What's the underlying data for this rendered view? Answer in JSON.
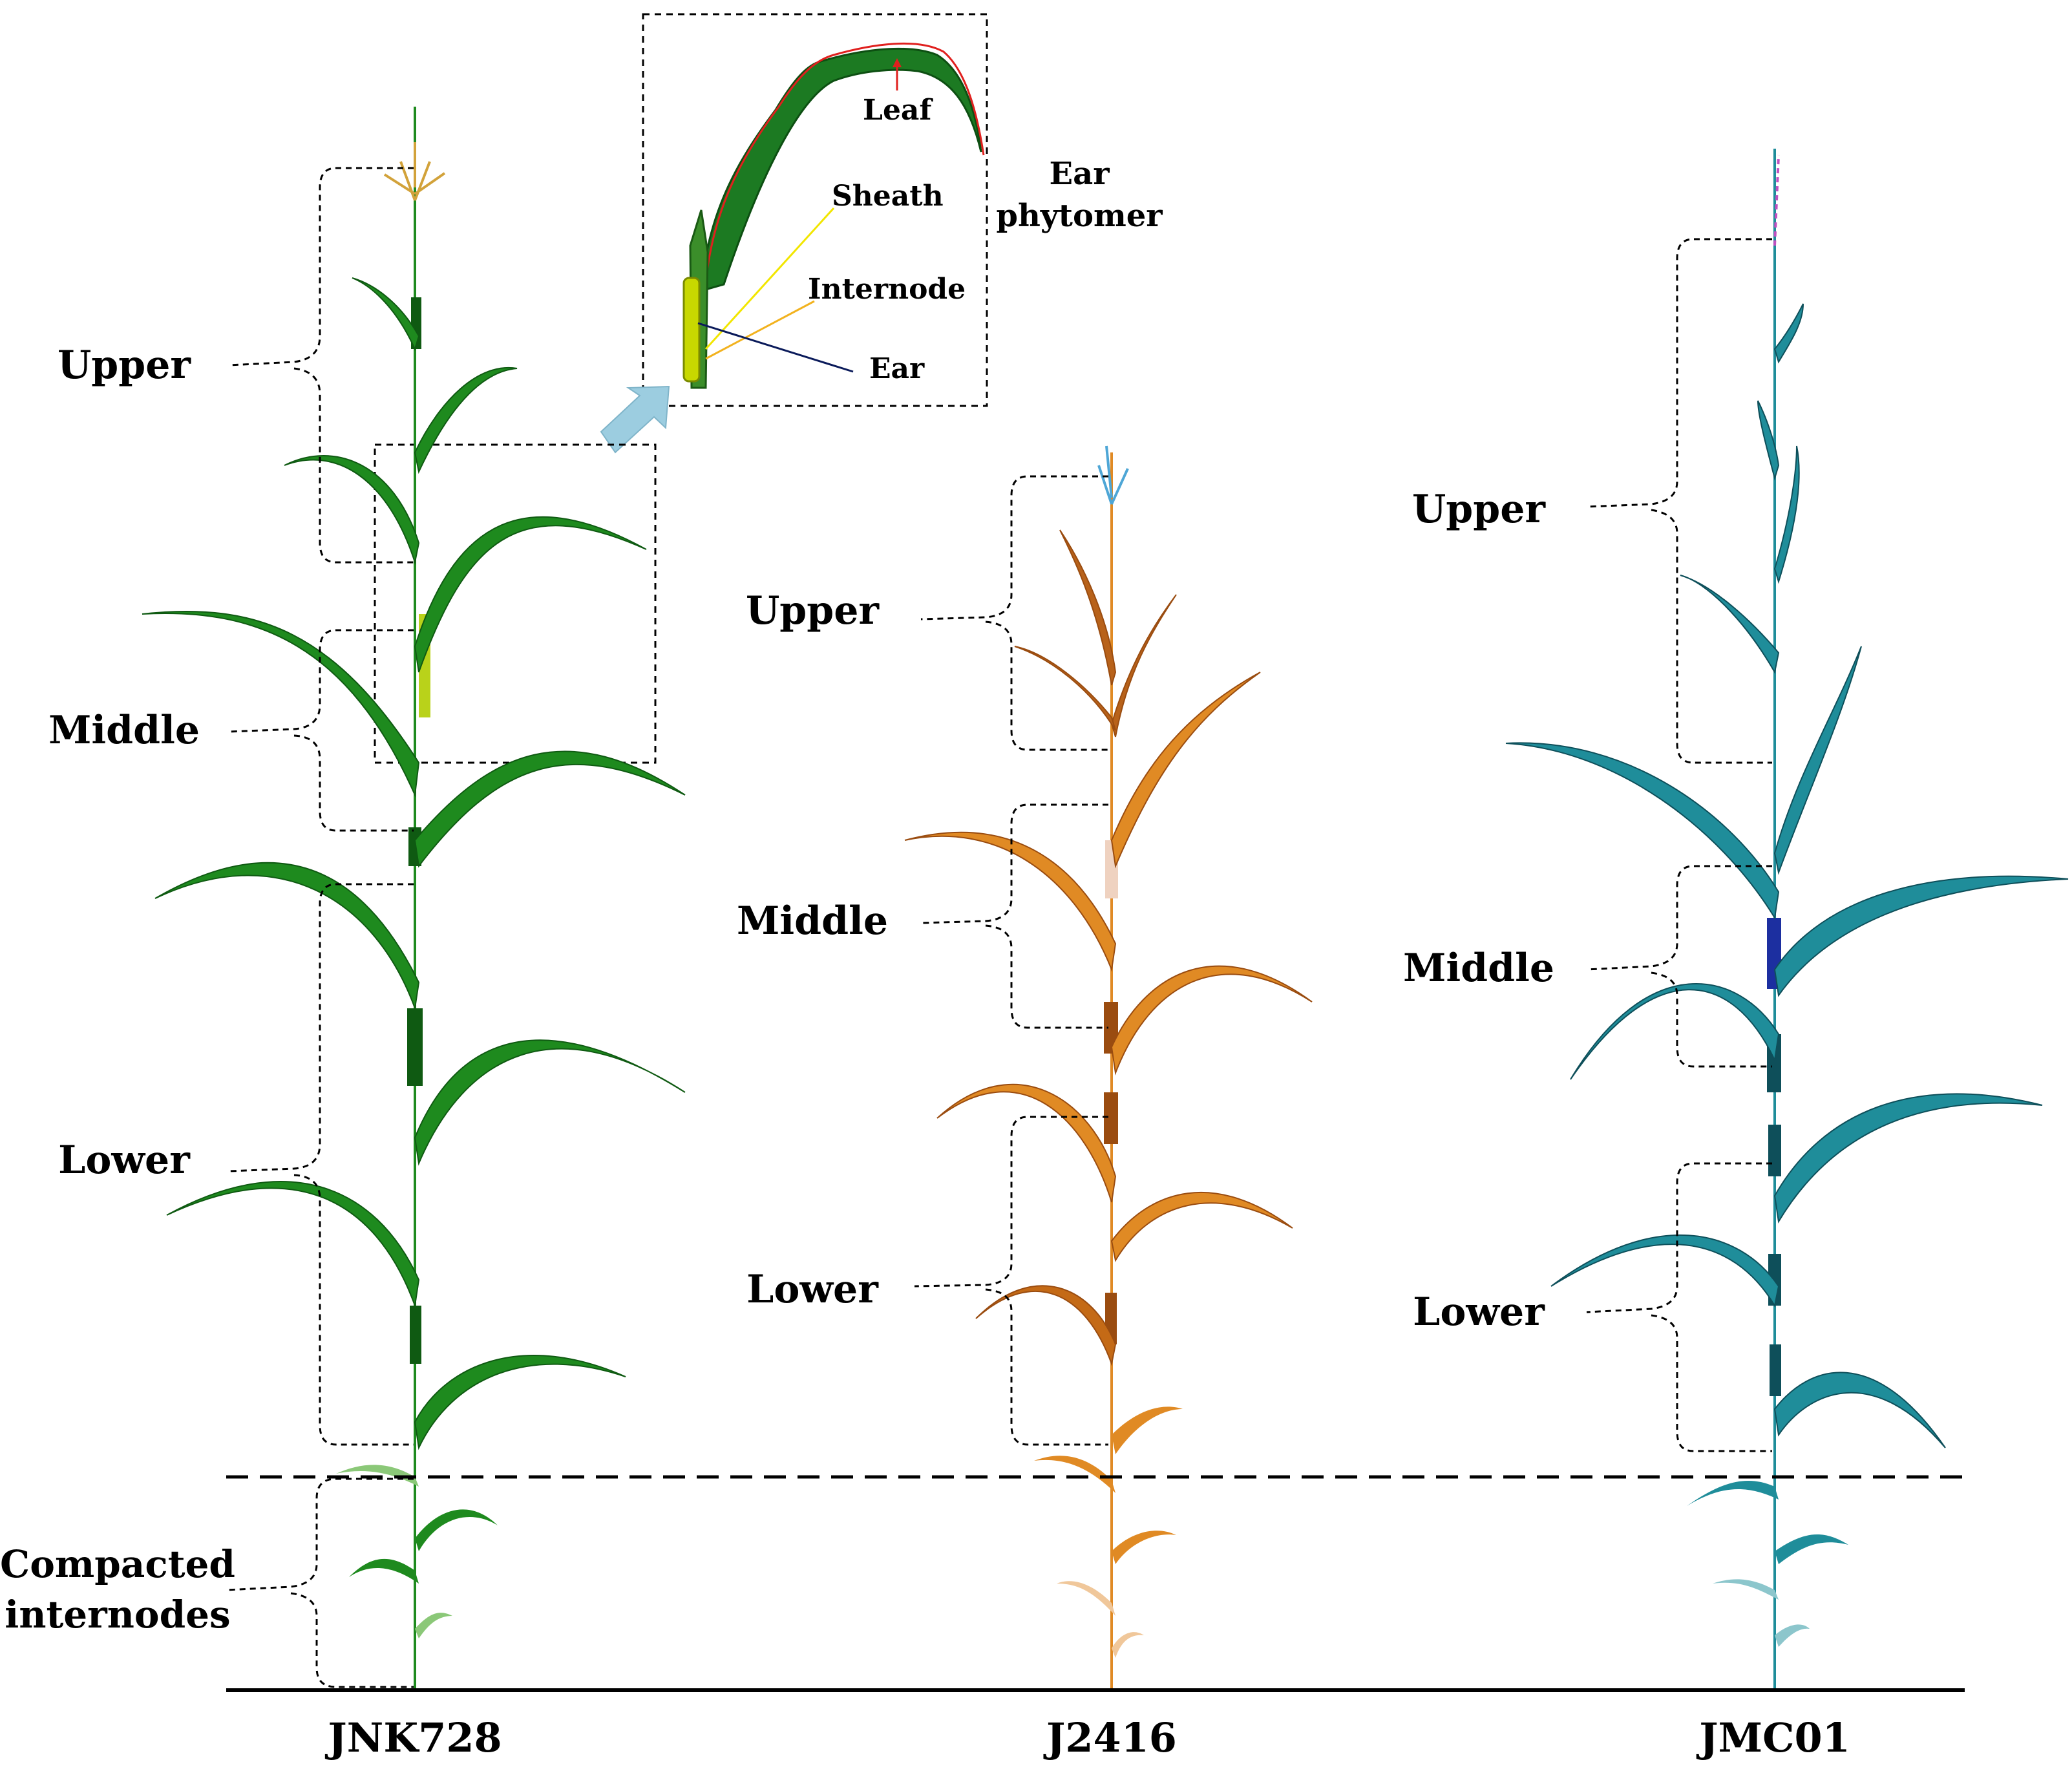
{
  "figure": {
    "inset_title": "Ear phytomer",
    "inset_title_line1": "Ear",
    "inset_title_line2": "phytomer",
    "inset_labels": {
      "leaf": "Leaf",
      "sheath": "Sheath",
      "internode": "Internode",
      "ear": "Ear"
    },
    "shared_region_label": {
      "line1": "Compacted",
      "line2": "internodes"
    },
    "plants": [
      {
        "name": "JNK728",
        "color": "#1e8a1e",
        "dark_color": "#0f5a12",
        "regions": [
          "Upper",
          "Middle",
          "Lower"
        ]
      },
      {
        "name": "J2416",
        "color": "#e08a24",
        "dark_color": "#9a4c10",
        "regions": [
          "Upper",
          "Middle",
          "Lower"
        ]
      },
      {
        "name": "JMC01",
        "color": "#1f8d9a",
        "dark_color": "#0e4f5a",
        "regions": [
          "Upper",
          "Middle",
          "Lower"
        ]
      }
    ],
    "colors": {
      "leaf_outline": "#e0201e",
      "sheath_line": "#f2e600",
      "internode_line": "#f2b21e",
      "ear_line": "#0a1a5a",
      "arrow": "#9ccde0"
    }
  }
}
